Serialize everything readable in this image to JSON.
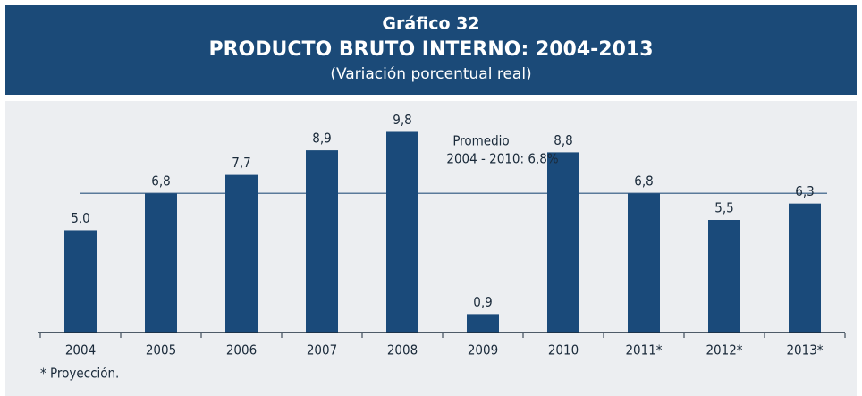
{
  "chart_data": {
    "type": "bar",
    "title": "Gráfico 32",
    "subtitle": "PRODUCTO BRUTO INTERNO: 2004-2013",
    "subtitle2": "(Variación porcentual real)",
    "categories": [
      "2004",
      "2005",
      "2006",
      "2007",
      "2008",
      "2009",
      "2010",
      "2011*",
      "2012*",
      "2013*"
    ],
    "values": [
      5.0,
      6.8,
      7.7,
      8.9,
      9.8,
      0.9,
      8.8,
      6.8,
      5.5,
      6.3
    ],
    "value_labels": [
      "5,0",
      "6,8",
      "7,7",
      "8,9",
      "9,8",
      "0,9",
      "8,8",
      "6,8",
      "5,5",
      "6,3"
    ],
    "color": "#1a4a7a",
    "ylim": [
      0,
      11
    ],
    "reference_line": {
      "value": 6.8,
      "color": "#5a7a9a"
    },
    "annotation": [
      "Promedio",
      "2004 - 2010: 6,8%"
    ],
    "footnote": "*  Proyección."
  }
}
